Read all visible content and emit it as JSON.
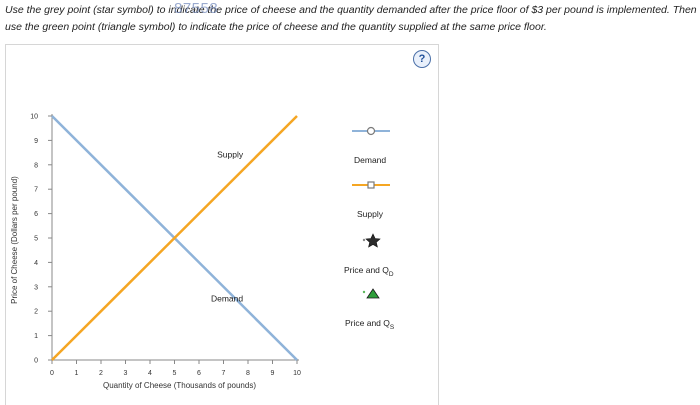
{
  "instructions": {
    "line1": "Use the grey point (star symbol) to indicate the price of cheese and the quantity demanded after the price floor of $3 per pound is implemented. Then",
    "line2": "use the green point (triangle symbol) to indicate the price of cheese and the quantity supplied at the same price floor.",
    "watermark": "87558"
  },
  "help": {
    "label": "?"
  },
  "legend": {
    "demand": "Demand",
    "supply": "Supply",
    "price_qd": "Price and Q",
    "price_qd_sub": "D",
    "price_qs": "Price and Q",
    "price_qs_sub": "S",
    "colors": {
      "demand": "#8fb3d9",
      "supply": "#f5a623",
      "star": "#2b2b2b",
      "triangle": "#2e9e3a"
    }
  },
  "chart_data": {
    "type": "line",
    "xlabel": "Quantity of Cheese (Thousands of pounds)",
    "ylabel": "Price of Cheese (Dollars per pound)",
    "xlim": [
      0,
      10
    ],
    "ylim": [
      0,
      10
    ],
    "xticks": [
      "0",
      "1",
      "2",
      "3",
      "4",
      "5",
      "6",
      "7",
      "8",
      "9",
      "10"
    ],
    "yticks": [
      "0",
      "1",
      "2",
      "3",
      "4",
      "5",
      "6",
      "7",
      "8",
      "9",
      "10"
    ],
    "grid": false,
    "series": [
      {
        "name": "Demand",
        "label": "Demand",
        "color": "#8fb3d9",
        "x": [
          0,
          10
        ],
        "y": [
          10,
          0
        ]
      },
      {
        "name": "Supply",
        "label": "Supply",
        "color": "#f5a623",
        "x": [
          0,
          10
        ],
        "y": [
          0,
          10
        ]
      }
    ],
    "line_labels": [
      {
        "text": "Supply",
        "x": 7.8,
        "y": 8.3
      },
      {
        "text": "Demand",
        "x": 7.8,
        "y": 2.4
      }
    ]
  }
}
